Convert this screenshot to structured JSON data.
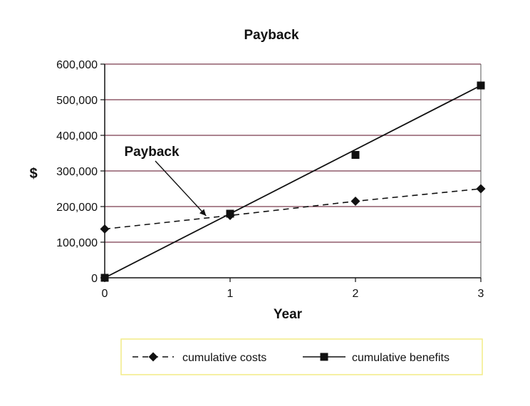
{
  "chart_data": {
    "type": "line",
    "title": "Payback",
    "xlabel": "Year",
    "ylabel": "$",
    "x": [
      0,
      1,
      2,
      3
    ],
    "xlim": [
      0,
      3
    ],
    "ylim": [
      0,
      600000
    ],
    "y_ticks": [
      0,
      100000,
      200000,
      300000,
      400000,
      500000,
      600000
    ],
    "y_tick_labels": [
      "0",
      "100,000",
      "200,000",
      "300,000",
      "400,000",
      "500,000",
      "600,000"
    ],
    "x_tick_labels": [
      "0",
      "1",
      "2",
      "3"
    ],
    "grid": true,
    "legend_position": "bottom",
    "series": [
      {
        "name": "cumulative costs",
        "values": [
          137000,
          175000,
          215000,
          250000
        ],
        "marker": "diamond",
        "line_style": "dashed",
        "color": "#111111"
      },
      {
        "name": "cumulative benefits",
        "values": [
          0,
          180000,
          345000,
          540000
        ],
        "marker": "square",
        "line_style": "solid",
        "color": "#111111",
        "trend_line": [
          0,
          540000
        ]
      }
    ],
    "annotations": [
      {
        "text": "Payback",
        "target_x": 0.82,
        "target_y": 180000
      }
    ],
    "grid_color": "#7a3a4e",
    "legend_border_color": "#f2ec86"
  }
}
